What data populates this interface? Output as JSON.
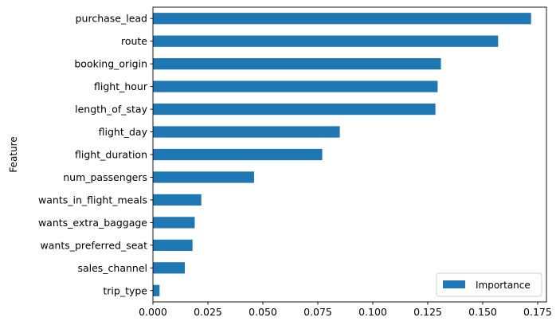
{
  "chart_data": {
    "type": "bar",
    "orientation": "horizontal",
    "title": "",
    "xlabel": "",
    "ylabel": "Feature",
    "categories": [
      "purchase_lead",
      "route",
      "booking_origin",
      "flight_hour",
      "length_of_stay",
      "flight_day",
      "flight_duration",
      "num_passengers",
      "wants_in_flight_meals",
      "wants_extra_baggage",
      "wants_preferred_seat",
      "sales_channel",
      "trip_type"
    ],
    "series": [
      {
        "name": "Importance",
        "values": [
          0.172,
          0.157,
          0.131,
          0.1295,
          0.1285,
          0.085,
          0.077,
          0.046,
          0.022,
          0.019,
          0.018,
          0.0145,
          0.003
        ],
        "color": "#1f77b4"
      }
    ],
    "xlim": [
      0,
      0.179
    ],
    "xticks": [
      "0.000",
      "0.025",
      "0.050",
      "0.075",
      "0.100",
      "0.125",
      "0.150",
      "0.175"
    ],
    "grid": false,
    "legend": {
      "position": "bottom-right",
      "entries": [
        "Importance"
      ]
    }
  }
}
